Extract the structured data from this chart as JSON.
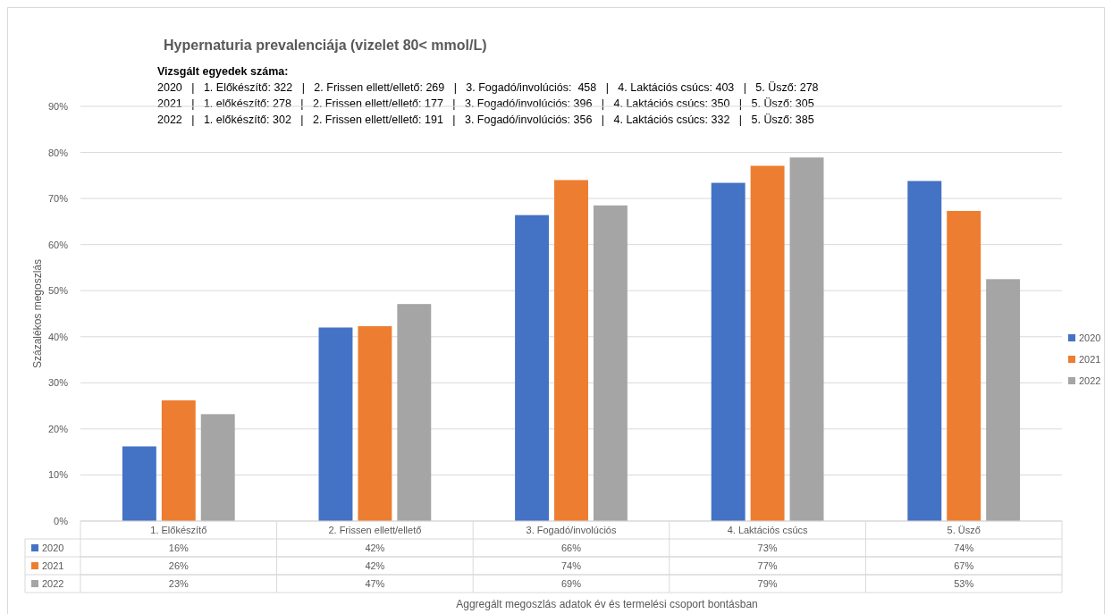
{
  "chart_data": {
    "type": "bar",
    "title": "Hypernaturia prevalenciája (vizelet 80< mmol/L)",
    "annotations": [
      "Vizsgált egyedek száma:",
      "2020   |   1. Előkészítő: 322   |   2. Frissen ellett/ellető: 269   |   3. Fogadó/involúciós:  458   |   4. Laktációs csúcs: 403   |   5. Üsző: 278",
      "2021   |   1. előkészítő: 278   |   2. Frissen ellett/ellető: 177   |   3. Fogadó/involúciós: 396   |   4. Laktációs csúcs: 350   |   5. Üsző: 305",
      "2022   |   1. előkészítő: 302   |   2. Frissen ellett/ellető: 191   |   3. Fogadó/involúciós: 356   |   4. Laktációs csúcs: 332   |   5. Üsző: 385",
      "Aggregált megoszlás adatok év és termelési csoport bontásban"
    ],
    "ylabel": "Százalékos megoszlás",
    "categories": [
      "1. Előkészítő",
      "2. Frissen ellett/ellető",
      "3. Fogadó/involúciós",
      "4. Laktációs csúcs",
      "5. Üsző"
    ],
    "series": [
      {
        "name": "2020",
        "color": "#4472c4",
        "values": [
          16.2,
          42.0,
          66.4,
          73.4,
          73.8
        ],
        "value_labels": [
          "16%",
          "42%",
          "66%",
          "73%",
          "74%"
        ]
      },
      {
        "name": "2021",
        "color": "#ed7d31",
        "values": [
          26.2,
          42.3,
          74.0,
          77.1,
          67.3
        ],
        "value_labels": [
          "26%",
          "42%",
          "74%",
          "77%",
          "67%"
        ]
      },
      {
        "name": "2022",
        "color": "#a5a5a5",
        "values": [
          23.2,
          47.1,
          68.5,
          78.9,
          52.5
        ],
        "value_labels": [
          "23%",
          "47%",
          "69%",
          "79%",
          "53%"
        ]
      }
    ],
    "ylim": [
      0,
      90
    ],
    "yticks": [
      {
        "value": 0,
        "label": "0%"
      },
      {
        "value": 10,
        "label": "10%"
      },
      {
        "value": 20,
        "label": "20%"
      },
      {
        "value": 30,
        "label": "30%"
      },
      {
        "value": 40,
        "label": "40%"
      },
      {
        "value": 50,
        "label": "50%"
      },
      {
        "value": 60,
        "label": "60%"
      },
      {
        "value": 70,
        "label": "70%"
      },
      {
        "value": 80,
        "label": "80%"
      },
      {
        "value": 90,
        "label": "90%"
      }
    ],
    "grid": "y",
    "legend": "right"
  }
}
